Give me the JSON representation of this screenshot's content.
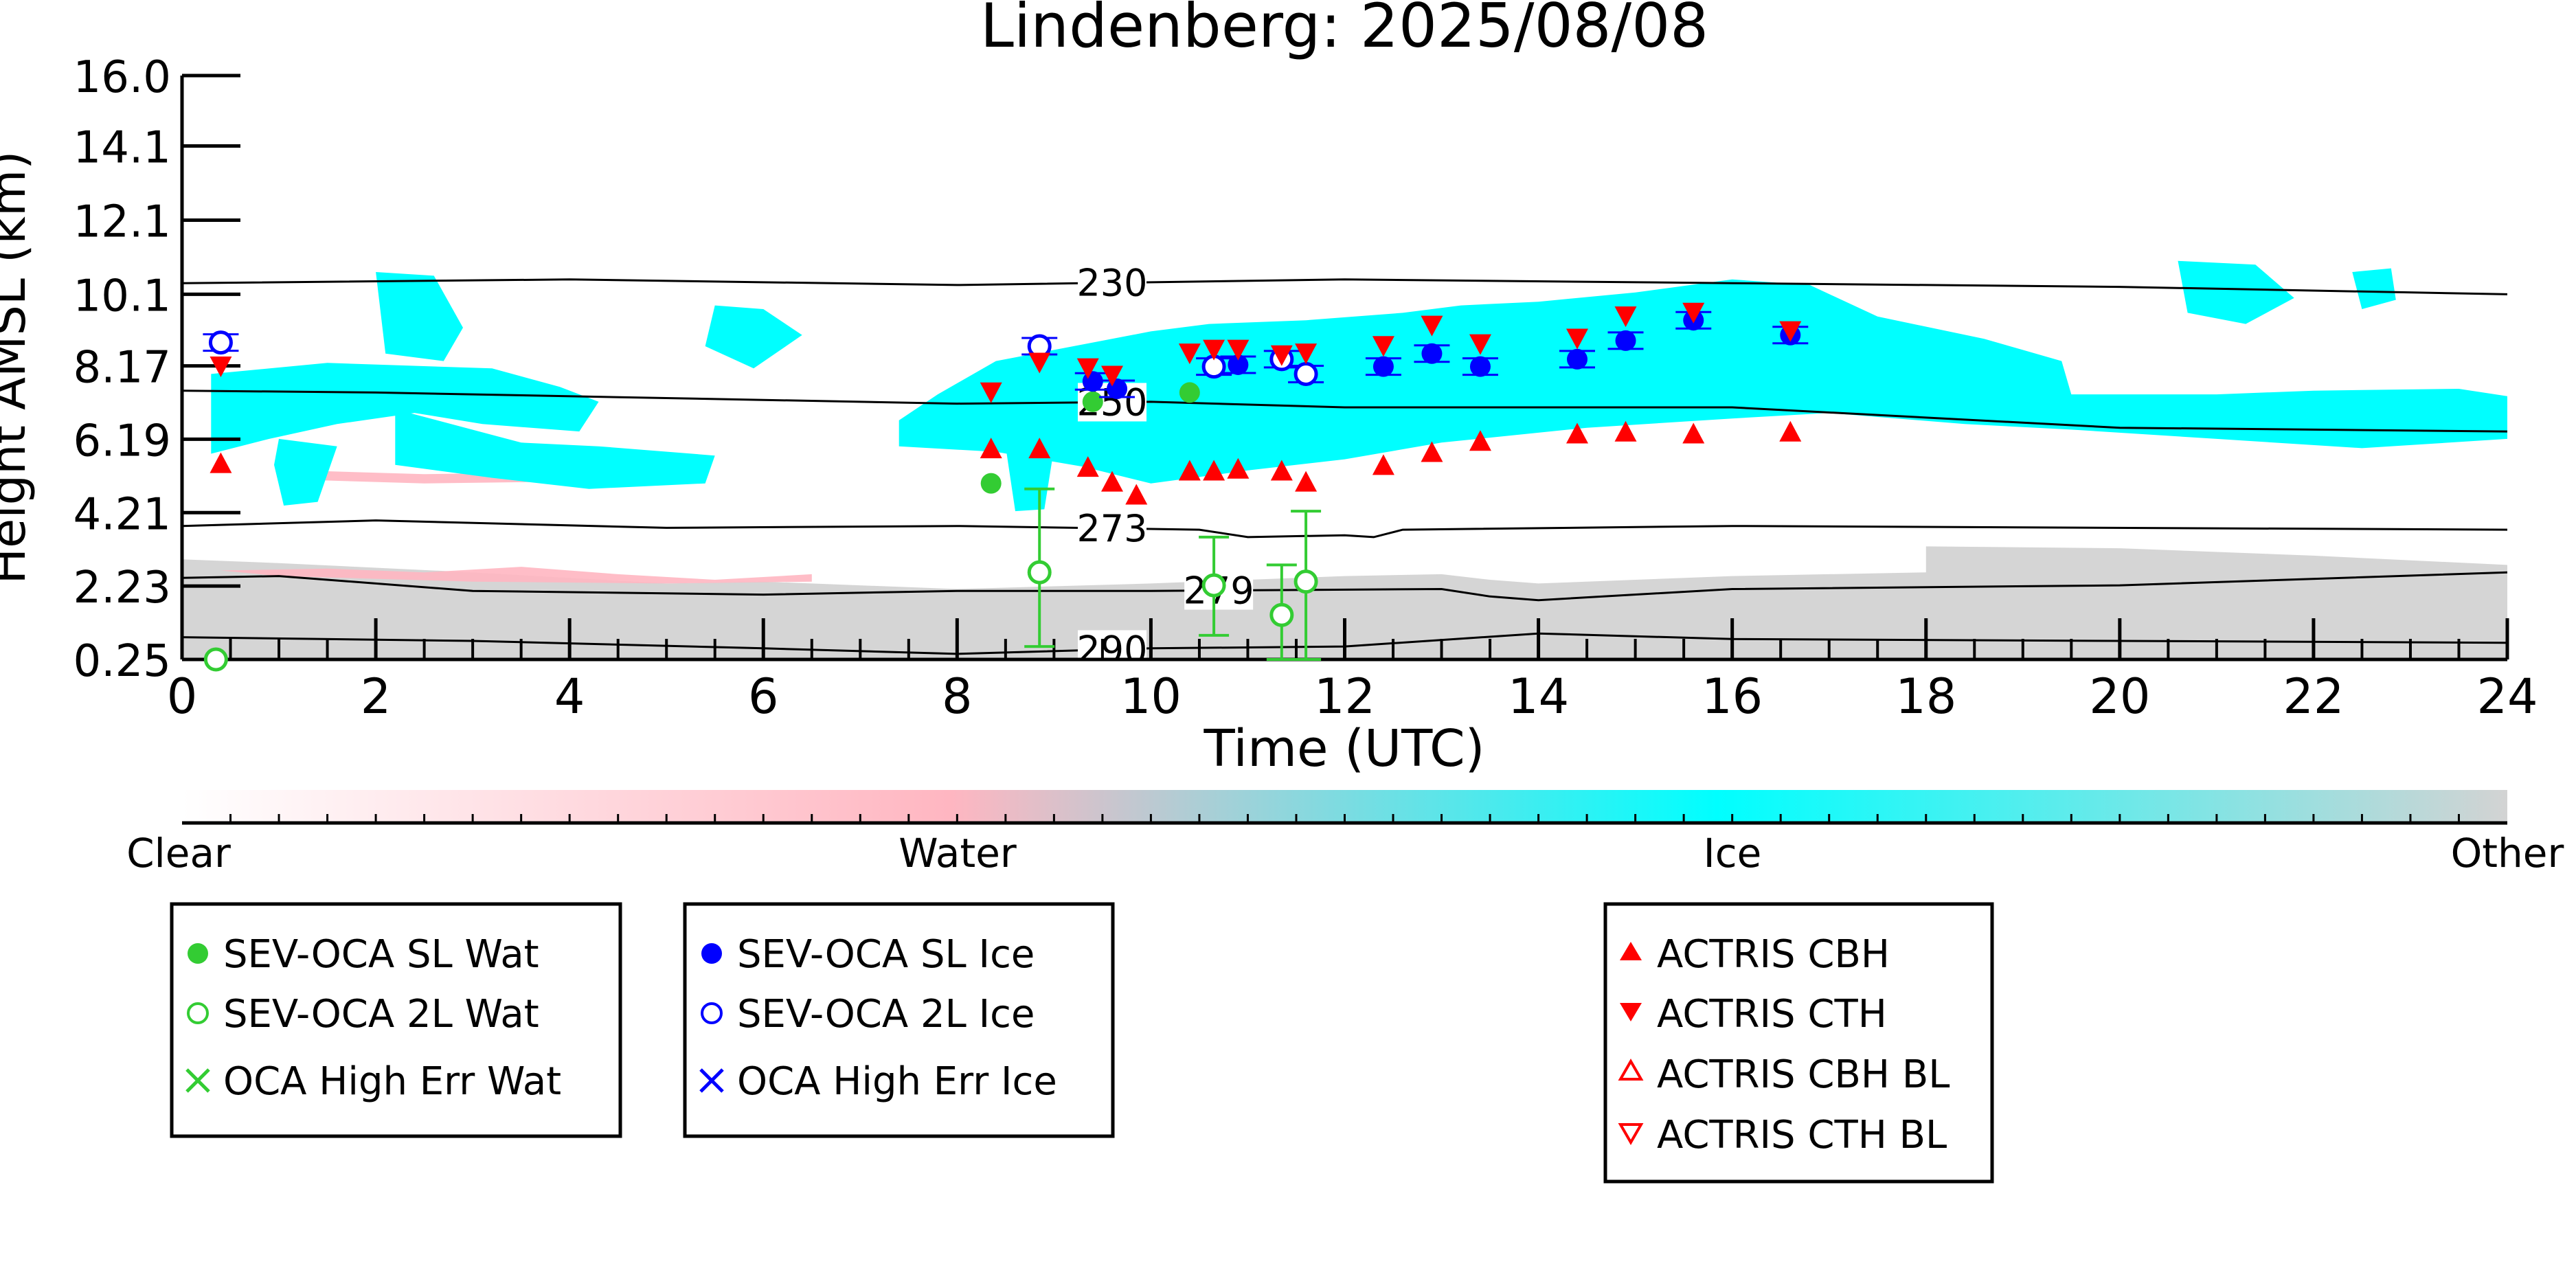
{
  "chart_data": {
    "type": "scatter",
    "title": "Lindenberg: 2025/08/08",
    "xlabel": "Time (UTC)",
    "ylabel": "Height AMSL (km)",
    "xlim": [
      0,
      24
    ],
    "ylim": [
      0.25,
      16.0
    ],
    "x_ticks": [
      "0",
      "2",
      "4",
      "6",
      "8",
      "10",
      "12",
      "14",
      "16",
      "18",
      "20",
      "22",
      "24"
    ],
    "y_ticks": [
      "0.25",
      "2.23",
      "4.21",
      "6.19",
      "8.17",
      "10.1",
      "12.1",
      "14.1",
      "16.0"
    ],
    "colorbar": {
      "labels": [
        "Clear",
        "Water",
        "Ice",
        "Other"
      ],
      "colors": {
        "clear": "#ffffff",
        "water": "#ffb6c1",
        "ice": "#00ffff",
        "other": "#d3d3d3"
      }
    },
    "legend_water": [
      "SEV-OCA SL Wat",
      "SEV-OCA 2L Wat",
      "OCA High Err Wat"
    ],
    "legend_ice": [
      "SEV-OCA SL Ice",
      "SEV-OCA 2L Ice",
      "OCA High Err Ice"
    ],
    "legend_actris": [
      "ACTRIS CBH",
      "ACTRIS CTH",
      "ACTRIS CBH BL",
      "ACTRIS CTH BL"
    ],
    "contours": [
      {
        "label": "230",
        "label_at": 9.6,
        "points": [
          [
            0,
            10.4
          ],
          [
            4,
            10.5
          ],
          [
            8,
            10.35
          ],
          [
            12,
            10.5
          ],
          [
            16,
            10.4
          ],
          [
            20,
            10.3
          ],
          [
            24,
            10.1
          ]
        ]
      },
      {
        "label": "250",
        "label_at": 9.6,
        "points": [
          [
            0,
            7.5
          ],
          [
            2,
            7.45
          ],
          [
            6,
            7.25
          ],
          [
            8,
            7.15
          ],
          [
            10,
            7.2
          ],
          [
            12,
            7.05
          ],
          [
            16,
            7.05
          ],
          [
            20,
            6.5
          ],
          [
            24,
            6.4
          ]
        ]
      },
      {
        "label": "273",
        "label_at": 9.6,
        "points": [
          [
            0,
            3.85
          ],
          [
            2,
            4.0
          ],
          [
            5,
            3.8
          ],
          [
            8,
            3.85
          ],
          [
            10.5,
            3.75
          ],
          [
            11,
            3.55
          ],
          [
            12,
            3.6
          ],
          [
            12.3,
            3.55
          ],
          [
            12.6,
            3.75
          ],
          [
            16,
            3.85
          ],
          [
            24,
            3.75
          ]
        ]
      },
      {
        "label": "279",
        "label_at": 10.7,
        "points": [
          [
            0,
            2.45
          ],
          [
            1,
            2.5
          ],
          [
            3,
            2.1
          ],
          [
            6,
            2.0
          ],
          [
            8,
            2.1
          ],
          [
            10,
            2.1
          ],
          [
            13,
            2.15
          ],
          [
            13.5,
            1.95
          ],
          [
            14,
            1.85
          ],
          [
            16,
            2.15
          ],
          [
            20,
            2.25
          ],
          [
            24,
            2.6
          ]
        ]
      },
      {
        "label": "290",
        "label_at": 9.6,
        "points": [
          [
            0,
            0.85
          ],
          [
            3,
            0.75
          ],
          [
            6,
            0.55
          ],
          [
            8,
            0.4
          ],
          [
            10,
            0.55
          ],
          [
            12,
            0.6
          ],
          [
            14,
            0.95
          ],
          [
            16,
            0.8
          ],
          [
            20,
            0.75
          ],
          [
            24,
            0.7
          ]
        ]
      }
    ],
    "series": [
      {
        "name": "SEV-OCA SL Wat",
        "color": "#33cc33",
        "marker": "filled-circle",
        "points": [
          {
            "x": 8.35,
            "y": 5.0
          },
          {
            "x": 9.4,
            "y": 7.2
          },
          {
            "x": 10.4,
            "y": 7.45
          }
        ]
      },
      {
        "name": "SEV-OCA 2L Wat",
        "color": "#33cc33",
        "marker": "open-circle",
        "points": [
          {
            "x": 8.85,
            "y": 2.6,
            "ylo": 0.6,
            "yhi": 4.85
          },
          {
            "x": 10.65,
            "y": 2.25,
            "ylo": 0.9,
            "yhi": 3.55
          },
          {
            "x": 11.35,
            "y": 1.45,
            "ylo": 0.25,
            "yhi": 2.8
          },
          {
            "x": 11.6,
            "y": 2.35,
            "ylo": 0.25,
            "yhi": 4.25
          },
          {
            "x": 0.35,
            "y": 0.25
          }
        ]
      },
      {
        "name": "SEV-OCA SL Ice",
        "color": "#0000ff",
        "marker": "filled-circle",
        "points": [
          {
            "x": 9.4,
            "y": 7.75
          },
          {
            "x": 9.65,
            "y": 7.55
          },
          {
            "x": 10.9,
            "y": 8.2
          },
          {
            "x": 12.4,
            "y": 8.15
          },
          {
            "x": 12.9,
            "y": 8.5
          },
          {
            "x": 13.4,
            "y": 8.15
          },
          {
            "x": 14.4,
            "y": 8.35
          },
          {
            "x": 14.9,
            "y": 8.85
          },
          {
            "x": 15.6,
            "y": 9.4
          },
          {
            "x": 16.6,
            "y": 9.0
          }
        ]
      },
      {
        "name": "SEV-OCA 2L Ice",
        "color": "#0000ff",
        "marker": "open-circle",
        "points": [
          {
            "x": 0.4,
            "y": 8.8
          },
          {
            "x": 8.85,
            "y": 8.7
          },
          {
            "x": 10.65,
            "y": 8.15
          },
          {
            "x": 11.35,
            "y": 8.35
          },
          {
            "x": 11.6,
            "y": 7.95
          }
        ]
      },
      {
        "name": "ACTRIS CBH",
        "color": "#ff0000",
        "marker": "triangle-up",
        "points": [
          {
            "x": 0.4,
            "y": 5.5
          },
          {
            "x": 8.35,
            "y": 5.9
          },
          {
            "x": 8.85,
            "y": 5.9
          },
          {
            "x": 9.35,
            "y": 5.4
          },
          {
            "x": 9.6,
            "y": 5.0
          },
          {
            "x": 9.85,
            "y": 4.65
          },
          {
            "x": 10.4,
            "y": 5.3
          },
          {
            "x": 10.65,
            "y": 5.3
          },
          {
            "x": 10.9,
            "y": 5.35
          },
          {
            "x": 11.35,
            "y": 5.3
          },
          {
            "x": 11.6,
            "y": 5.0
          },
          {
            "x": 12.4,
            "y": 5.45
          },
          {
            "x": 12.9,
            "y": 5.8
          },
          {
            "x": 13.4,
            "y": 6.1
          },
          {
            "x": 14.4,
            "y": 6.3
          },
          {
            "x": 14.9,
            "y": 6.35
          },
          {
            "x": 15.6,
            "y": 6.3
          },
          {
            "x": 16.6,
            "y": 6.35
          }
        ]
      },
      {
        "name": "ACTRIS CTH",
        "color": "#ff0000",
        "marker": "triangle-down",
        "points": [
          {
            "x": 0.4,
            "y": 8.2
          },
          {
            "x": 8.35,
            "y": 7.5
          },
          {
            "x": 8.85,
            "y": 8.3
          },
          {
            "x": 9.35,
            "y": 8.15
          },
          {
            "x": 9.6,
            "y": 7.95
          },
          {
            "x": 10.4,
            "y": 8.55
          },
          {
            "x": 10.65,
            "y": 8.65
          },
          {
            "x": 10.9,
            "y": 8.65
          },
          {
            "x": 11.35,
            "y": 8.5
          },
          {
            "x": 11.6,
            "y": 8.55
          },
          {
            "x": 12.4,
            "y": 8.75
          },
          {
            "x": 12.9,
            "y": 9.3
          },
          {
            "x": 13.4,
            "y": 8.8
          },
          {
            "x": 14.4,
            "y": 8.95
          },
          {
            "x": 14.9,
            "y": 9.55
          },
          {
            "x": 15.6,
            "y": 9.65
          },
          {
            "x": 16.6,
            "y": 9.15
          }
        ]
      }
    ]
  }
}
